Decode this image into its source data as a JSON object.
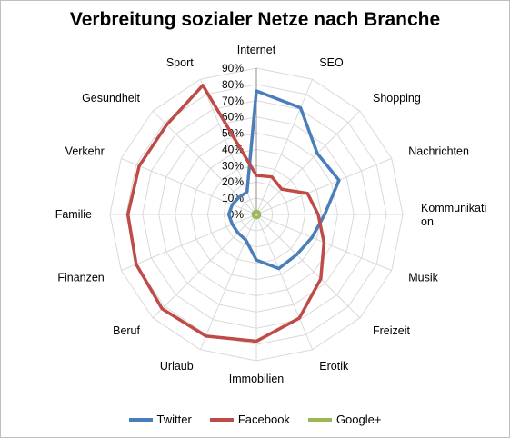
{
  "chart_data": {
    "type": "radar",
    "title": "Verbreitung sozialer Netze nach Branche",
    "categories": [
      "Internet",
      "SEO",
      "Shopping",
      "Nachrichten",
      "Kommunikati|on",
      "Musik",
      "Freizeit",
      "Erotik",
      "Immobilien",
      "Urlaub",
      "Beruf",
      "Finanzen",
      "Familie",
      "Verkehr",
      "Gesundheit",
      "Sport"
    ],
    "radial_ticks": [
      "0%",
      "10%",
      "20%",
      "30%",
      "40%",
      "50%",
      "60%",
      "70%",
      "80%",
      "90%"
    ],
    "rmax": 0.9,
    "series": [
      {
        "name": "Twitter",
        "color": "#4a7ebb",
        "values": [
          0.76,
          0.71,
          0.53,
          0.55,
          0.42,
          0.37,
          0.35,
          0.36,
          0.28,
          0.17,
          0.16,
          0.16,
          0.17,
          0.16,
          0.15,
          0.15
        ]
      },
      {
        "name": "Facebook",
        "color": "#be4b48",
        "values": [
          0.24,
          0.25,
          0.22,
          0.34,
          0.38,
          0.45,
          0.56,
          0.69,
          0.78,
          0.81,
          0.82,
          0.8,
          0.79,
          0.78,
          0.78,
          0.86
        ]
      },
      {
        "name": "Google+",
        "color": "#98b954",
        "values": [
          0.02,
          0.02,
          0.02,
          0.02,
          0.02,
          0.02,
          0.02,
          0.02,
          0.02,
          0.02,
          0.02,
          0.02,
          0.02,
          0.02,
          0.02,
          0.02
        ]
      }
    ],
    "legend_position": "bottom"
  }
}
